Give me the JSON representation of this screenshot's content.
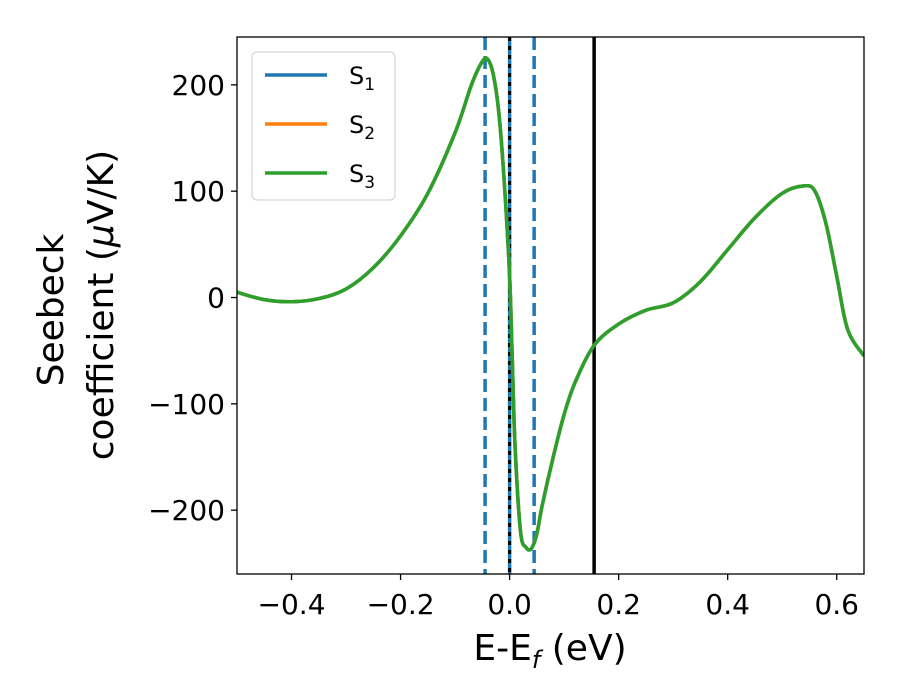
{
  "chart_data": {
    "type": "line",
    "xlabel": "E-E",
    "xlabel_sub": "f",
    "xlabel_unit": " (eV)",
    "ylabel_line1": "Seebeck",
    "ylabel_line2": "coefficient  (",
    "ylabel_mu": "μ",
    "ylabel_unit": "V/K)",
    "xlim": [
      -0.5,
      0.65
    ],
    "ylim": [
      -260,
      245
    ],
    "xticks": [
      -0.4,
      -0.2,
      0.0,
      0.2,
      0.4,
      0.6
    ],
    "xtick_labels": [
      "−0.4",
      "−0.2",
      "0.0",
      "0.2",
      "0.4",
      "0.6"
    ],
    "yticks": [
      -200,
      -100,
      0,
      100,
      200
    ],
    "ytick_labels": [
      "−200",
      "−100",
      "0",
      "100",
      "200"
    ],
    "grid": false,
    "legend_position": "top-left",
    "series": [
      {
        "name": "S",
        "sub": "1",
        "color": "#1f77b4",
        "x": [
          -0.5,
          -0.45,
          -0.4,
          -0.35,
          -0.3,
          -0.25,
          -0.2,
          -0.15,
          -0.1,
          -0.07,
          -0.05,
          -0.04,
          -0.03,
          -0.02,
          -0.01,
          0.0,
          0.005,
          0.01,
          0.02,
          0.03,
          0.04,
          0.05,
          0.06,
          0.08,
          0.1,
          0.12,
          0.155,
          0.2,
          0.25,
          0.3,
          0.35,
          0.4,
          0.45,
          0.5,
          0.54,
          0.56,
          0.58,
          0.6,
          0.62,
          0.65
        ],
        "y": [
          5,
          -2,
          -4,
          -1,
          8,
          28,
          58,
          98,
          155,
          200,
          222,
          224,
          210,
          175,
          110,
          20,
          -60,
          -140,
          -220,
          -235,
          -236,
          -222,
          -195,
          -150,
          -110,
          -80,
          -45,
          -25,
          -12,
          -5,
          15,
          45,
          75,
          98,
          105,
          100,
          70,
          20,
          -30,
          -55
        ]
      },
      {
        "name": "S",
        "sub": "2",
        "color": "#ff7f0e",
        "x": [
          -0.5,
          -0.45,
          -0.4,
          -0.35,
          -0.3,
          -0.25,
          -0.2,
          -0.15,
          -0.1,
          -0.07,
          -0.05,
          -0.04,
          -0.03,
          -0.02,
          -0.01,
          0.0,
          0.005,
          0.01,
          0.02,
          0.03,
          0.04,
          0.05,
          0.06,
          0.08,
          0.1,
          0.12,
          0.155,
          0.2,
          0.25,
          0.3,
          0.35,
          0.4,
          0.45,
          0.5,
          0.54,
          0.56,
          0.58,
          0.6,
          0.62,
          0.65
        ],
        "y": [
          5,
          -2,
          -4,
          -1,
          8,
          28,
          58,
          98,
          155,
          200,
          222,
          224,
          210,
          175,
          110,
          20,
          -60,
          -140,
          -220,
          -235,
          -236,
          -222,
          -195,
          -150,
          -110,
          -80,
          -45,
          -25,
          -12,
          -5,
          15,
          45,
          75,
          98,
          105,
          100,
          70,
          20,
          -30,
          -55
        ]
      },
      {
        "name": "S",
        "sub": "3",
        "color": "#2ca02c",
        "x": [
          -0.5,
          -0.45,
          -0.4,
          -0.35,
          -0.3,
          -0.25,
          -0.2,
          -0.15,
          -0.1,
          -0.07,
          -0.05,
          -0.04,
          -0.03,
          -0.02,
          -0.01,
          0.0,
          0.005,
          0.01,
          0.02,
          0.03,
          0.04,
          0.05,
          0.06,
          0.08,
          0.1,
          0.12,
          0.155,
          0.2,
          0.25,
          0.3,
          0.35,
          0.4,
          0.45,
          0.5,
          0.54,
          0.56,
          0.58,
          0.6,
          0.62,
          0.65
        ],
        "y": [
          5,
          -2,
          -4,
          -1,
          8,
          28,
          58,
          98,
          155,
          200,
          222,
          224,
          210,
          175,
          110,
          20,
          -60,
          -140,
          -220,
          -235,
          -236,
          -222,
          -195,
          -150,
          -110,
          -80,
          -45,
          -25,
          -12,
          -5,
          15,
          45,
          75,
          98,
          105,
          100,
          70,
          20,
          -30,
          -55
        ]
      }
    ],
    "vlines": [
      {
        "x": -0.045,
        "color": "#1f77b4",
        "style": "dashed"
      },
      {
        "x": 0.0,
        "color": "#1f77b4",
        "style": "solid"
      },
      {
        "x": 0.0,
        "color": "#000000",
        "style": "dotted"
      },
      {
        "x": 0.045,
        "color": "#1f77b4",
        "style": "dashed"
      },
      {
        "x": 0.155,
        "color": "#000000",
        "style": "solid"
      }
    ]
  }
}
